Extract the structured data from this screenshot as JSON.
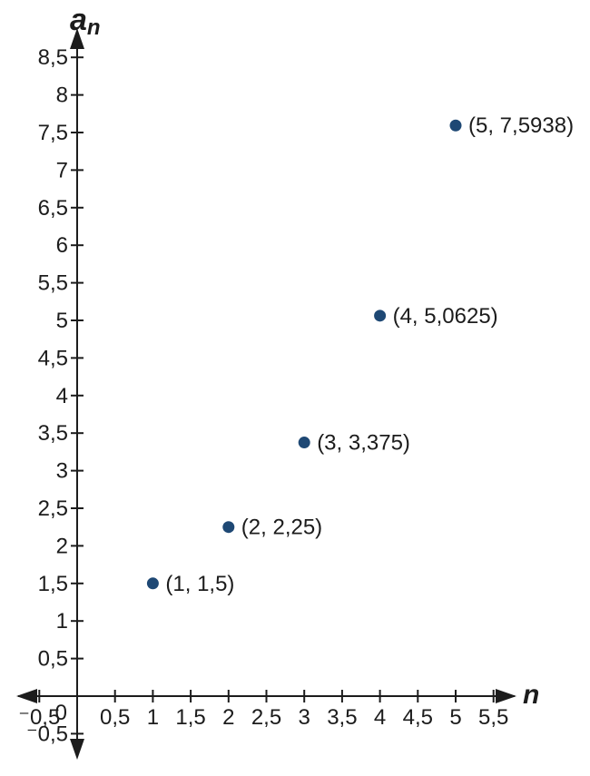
{
  "figure": {
    "background": "#ffffff"
  },
  "chart_data": {
    "type": "scatter",
    "title": "",
    "xlabel": "n",
    "ylabel": {
      "base": "a",
      "sub": "n"
    },
    "series": [
      {
        "name": "a_n",
        "points": [
          {
            "x": 1,
            "y": 1.5,
            "label": "(1, 1,5)"
          },
          {
            "x": 2,
            "y": 2.25,
            "label": "(2, 2,25)"
          },
          {
            "x": 3,
            "y": 3.375,
            "label": "(3, 3,375)"
          },
          {
            "x": 4,
            "y": 5.0625,
            "label": "(4, 5,0625)"
          },
          {
            "x": 5,
            "y": 7.5938,
            "label": "(5, 7,5938)"
          }
        ]
      }
    ],
    "xlim": [
      -0.5,
      5.5
    ],
    "ylim": [
      -0.5,
      8.5
    ],
    "tick_step": 0.5,
    "decimal_separator": ",",
    "x_ticks": [
      {
        "value": -0.5,
        "label": "⁻0,5"
      },
      {
        "value": 0.5,
        "label": "0,5"
      },
      {
        "value": 1,
        "label": "1"
      },
      {
        "value": 1.5,
        "label": "1,5"
      },
      {
        "value": 2,
        "label": "2"
      },
      {
        "value": 2.5,
        "label": "2,5"
      },
      {
        "value": 3,
        "label": "3"
      },
      {
        "value": 3.5,
        "label": "3,5"
      },
      {
        "value": 4,
        "label": "4"
      },
      {
        "value": 4.5,
        "label": "4,5"
      },
      {
        "value": 5,
        "label": "5"
      },
      {
        "value": 5.5,
        "label": "5,5"
      }
    ],
    "y_ticks": [
      {
        "value": -0.5,
        "label": "⁻0,5"
      },
      {
        "value": 0.5,
        "label": "0,5"
      },
      {
        "value": 1,
        "label": "1"
      },
      {
        "value": 1.5,
        "label": "1,5"
      },
      {
        "value": 2,
        "label": "2"
      },
      {
        "value": 2.5,
        "label": "2,5"
      },
      {
        "value": 3,
        "label": "3"
      },
      {
        "value": 3.5,
        "label": "3,5"
      },
      {
        "value": 4,
        "label": "4"
      },
      {
        "value": 4.5,
        "label": "4,5"
      },
      {
        "value": 5,
        "label": "5"
      },
      {
        "value": 5.5,
        "label": "5,5"
      },
      {
        "value": 6,
        "label": "6"
      },
      {
        "value": 6.5,
        "label": "6,5"
      },
      {
        "value": 7,
        "label": "7"
      },
      {
        "value": 7.5,
        "label": "7,5"
      },
      {
        "value": 8,
        "label": "8"
      },
      {
        "value": 8.5,
        "label": "8,5"
      }
    ],
    "origin_label": "0",
    "grid": false,
    "legend": null,
    "colors": {
      "point": "#1e4874",
      "axis": "#1c1c1c",
      "text": "#1c1c1c"
    }
  }
}
